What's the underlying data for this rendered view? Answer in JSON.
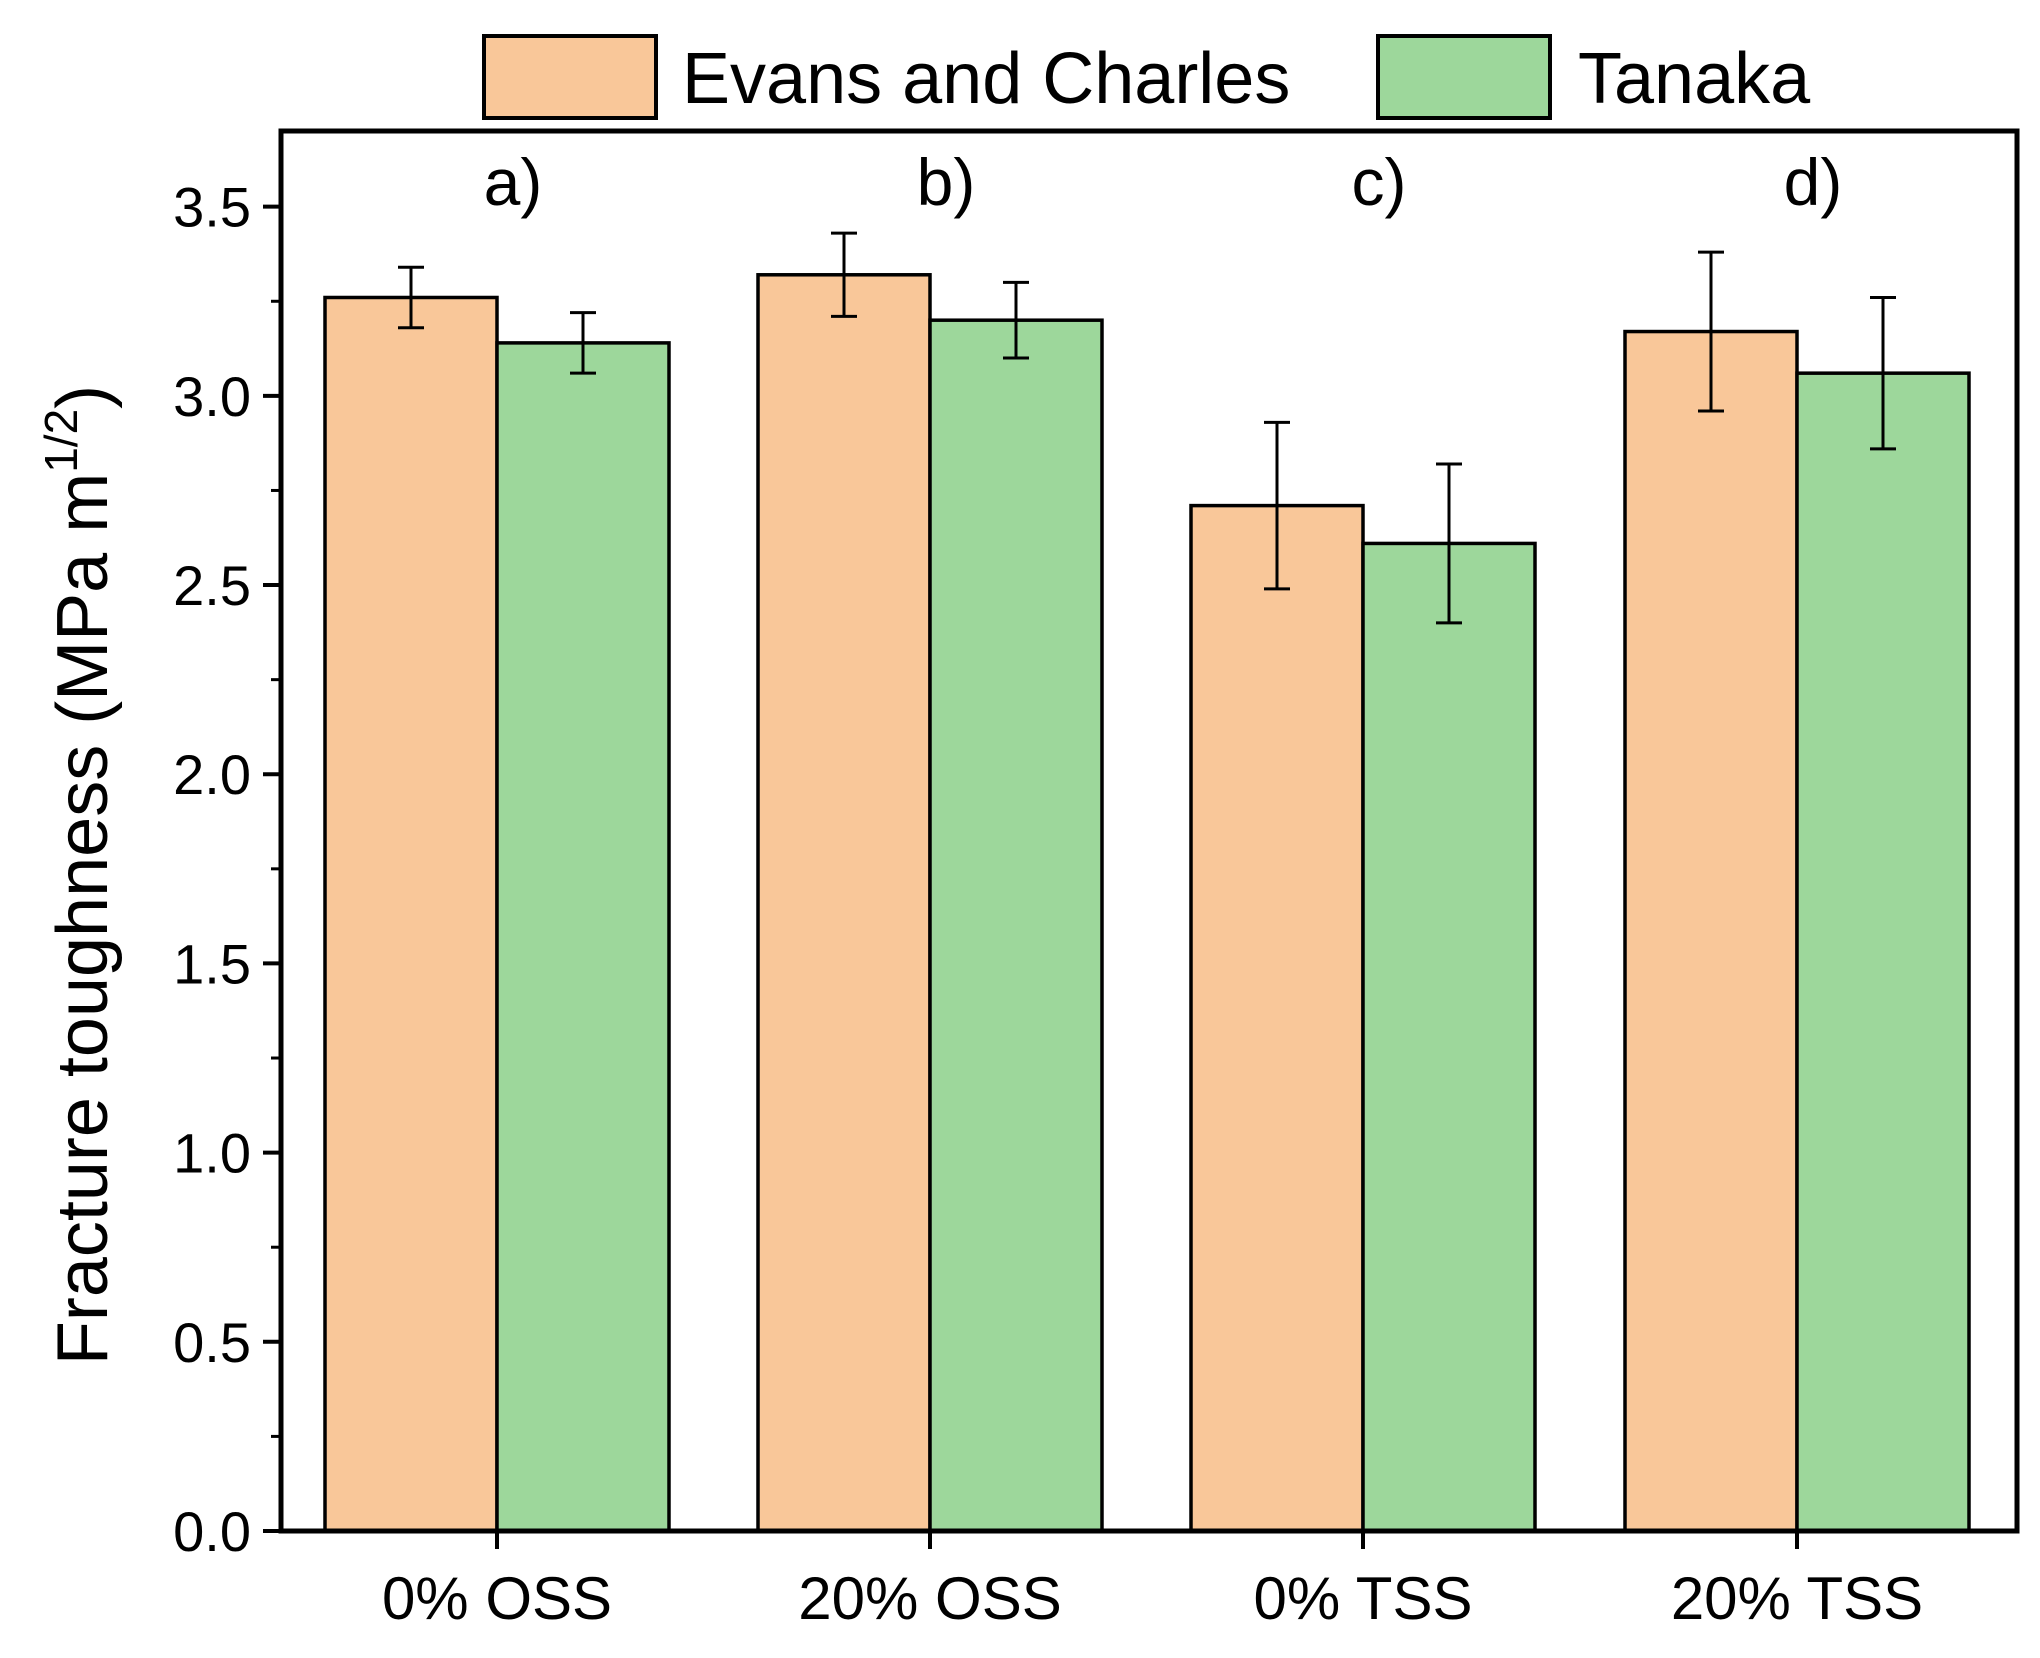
{
  "chart_data": {
    "type": "bar",
    "title": "",
    "xlabel": "",
    "ylabel": "Fracture toughness (MPa m",
    "ylabel_superscript": "1/2",
    "ylabel_suffix": ")",
    "ylim": [
      0,
      3.7
    ],
    "yticks": [
      "0.0",
      "0.5",
      "1.0",
      "1.5",
      "2.0",
      "2.5",
      "3.0",
      "3.5"
    ],
    "ytick_values": [
      0,
      0.5,
      1.0,
      1.5,
      2.0,
      2.5,
      3.0,
      3.5
    ],
    "categories": [
      "0% OSS",
      "20% OSS",
      "0% TSS",
      "20% TSS"
    ],
    "panel_labels": [
      "a)",
      "b)",
      "c)",
      "d)"
    ],
    "grid": false,
    "legend_position": "top-center",
    "series": [
      {
        "name": "Evans and Charles",
        "color": "#F9C799",
        "values": [
          3.26,
          3.32,
          2.71,
          3.17
        ],
        "errors": [
          0.08,
          0.11,
          0.22,
          0.21
        ]
      },
      {
        "name": "Tanaka",
        "color": "#9DD79B",
        "values": [
          3.14,
          3.2,
          2.61,
          3.06
        ],
        "errors": [
          0.08,
          0.1,
          0.21,
          0.2
        ]
      }
    ]
  }
}
